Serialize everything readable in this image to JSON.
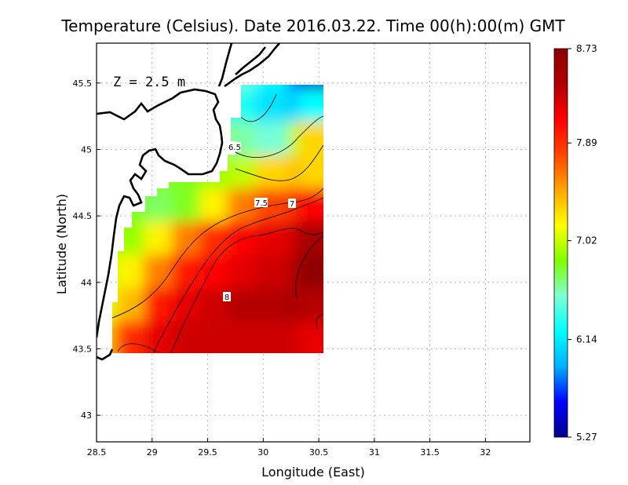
{
  "chart_data": {
    "type": "heatmap",
    "title": "Temperature (Celsius). Date 2016.03.22. Time 00(h):00(m) GMT",
    "xlabel": "Longitude (East)",
    "ylabel": "Latitude (North)",
    "annotation": "Z = 2.5 m",
    "xlim": [
      28.5,
      32.4
    ],
    "ylim": [
      42.8,
      45.8
    ],
    "x_ticks": [
      "28.5",
      "29",
      "29.5",
      "30",
      "30.5",
      "31",
      "31.5",
      "32"
    ],
    "y_ticks": [
      "43",
      "43.5",
      "44",
      "44.5",
      "45",
      "45.5"
    ],
    "grid": true,
    "colorbar": {
      "min": 5.27,
      "max": 8.73,
      "ticks": [
        "8.73",
        "7.89",
        "7.02",
        "6.14",
        "5.27"
      ],
      "colors": [
        "#00008b",
        "#0000ff",
        "#00b0ff",
        "#00ffff",
        "#7fffd4",
        "#7fff00",
        "#ffff00",
        "#ffa500",
        "#ff4500",
        "#ff0000",
        "#b00000",
        "#8b0000"
      ]
    },
    "contour_levels": [
      "6.5",
      "7",
      "7.5",
      "8"
    ],
    "field": {
      "lon": [
        28.63,
        28.9,
        29.15,
        29.4,
        29.65,
        29.9,
        30.15,
        30.4,
        30.55
      ],
      "lat": [
        45.5,
        45.25,
        45.0,
        44.75,
        44.5,
        44.25,
        44.0,
        43.75,
        43.5
      ],
      "values": [
        [
          null,
          null,
          null,
          null,
          null,
          6.5,
          6.2,
          5.7,
          5.4
        ],
        [
          null,
          null,
          null,
          null,
          6.1,
          6.3,
          6.1,
          6.0,
          6.2
        ],
        [
          null,
          null,
          null,
          null,
          6.9,
          6.6,
          6.5,
          7.0,
          7.3
        ],
        [
          null,
          null,
          6.8,
          6.8,
          6.9,
          7.0,
          7.3,
          7.4,
          7.3
        ],
        [
          6.9,
          6.8,
          6.7,
          6.8,
          7.2,
          7.6,
          7.8,
          7.9,
          8.1
        ],
        [
          7.0,
          6.9,
          7.2,
          7.6,
          7.9,
          8.1,
          8.2,
          8.3,
          8.5
        ],
        [
          7.0,
          7.2,
          7.6,
          8.0,
          8.1,
          8.2,
          8.3,
          8.4,
          8.7
        ],
        [
          7.1,
          7.4,
          8.0,
          8.2,
          8.3,
          8.4,
          8.4,
          8.5,
          8.4
        ],
        [
          7.4,
          7.9,
          8.2,
          8.3,
          8.3,
          8.3,
          8.3,
          8.3,
          8.2
        ]
      ]
    }
  }
}
